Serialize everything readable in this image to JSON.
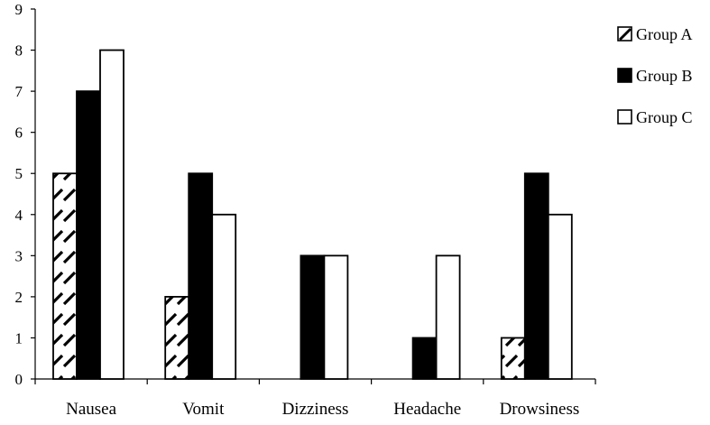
{
  "chart_data": {
    "type": "bar",
    "categories": [
      "Nausea",
      "Vomit",
      "Dizziness",
      "Headache",
      "Drowsiness"
    ],
    "series": [
      {
        "name": "Group A",
        "values": [
          5,
          2,
          0,
          0,
          1
        ],
        "fill": "hatch"
      },
      {
        "name": "Group B",
        "values": [
          7,
          5,
          3,
          1,
          5
        ],
        "fill": "#000000"
      },
      {
        "name": "Group C",
        "values": [
          8,
          4,
          3,
          3,
          4
        ],
        "fill": "#ffffff"
      }
    ],
    "ylim": [
      0,
      9
    ],
    "yticks": [
      0,
      1,
      2,
      3,
      4,
      5,
      6,
      7,
      8,
      9
    ],
    "grid": false,
    "legend_position": "right"
  }
}
